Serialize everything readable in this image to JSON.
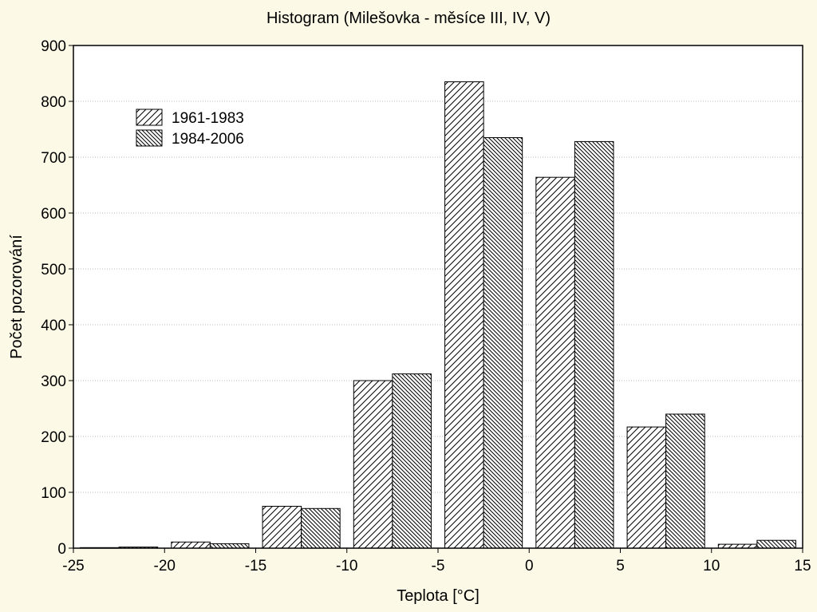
{
  "chart_data": {
    "type": "bar",
    "title": "Histogram (Milešovka - měsíce III, IV, V)",
    "xlabel": "Teplota [°C]",
    "ylabel": "Počet pozorování",
    "xlim": [
      -25,
      15
    ],
    "ylim": [
      0,
      900
    ],
    "xticks": [
      -25,
      -20,
      -15,
      -10,
      -5,
      0,
      5,
      10,
      15
    ],
    "yticks": [
      0,
      100,
      200,
      300,
      400,
      500,
      600,
      700,
      800,
      900
    ],
    "grid": true,
    "legend_position": "top-left",
    "bins": [
      [
        -25,
        -20
      ],
      [
        -20,
        -15
      ],
      [
        -15,
        -10
      ],
      [
        -10,
        -5
      ],
      [
        -5,
        0
      ],
      [
        0,
        5
      ],
      [
        5,
        10
      ],
      [
        10,
        15
      ]
    ],
    "series": [
      {
        "name": "1961-1983",
        "hatch": "diagonal-sparse",
        "values": [
          1,
          11,
          75,
          300,
          835,
          664,
          217,
          7
        ]
      },
      {
        "name": "1984-2006",
        "hatch": "diagonal-dense",
        "values": [
          2,
          8,
          71,
          312,
          735,
          728,
          240,
          14
        ]
      }
    ]
  }
}
